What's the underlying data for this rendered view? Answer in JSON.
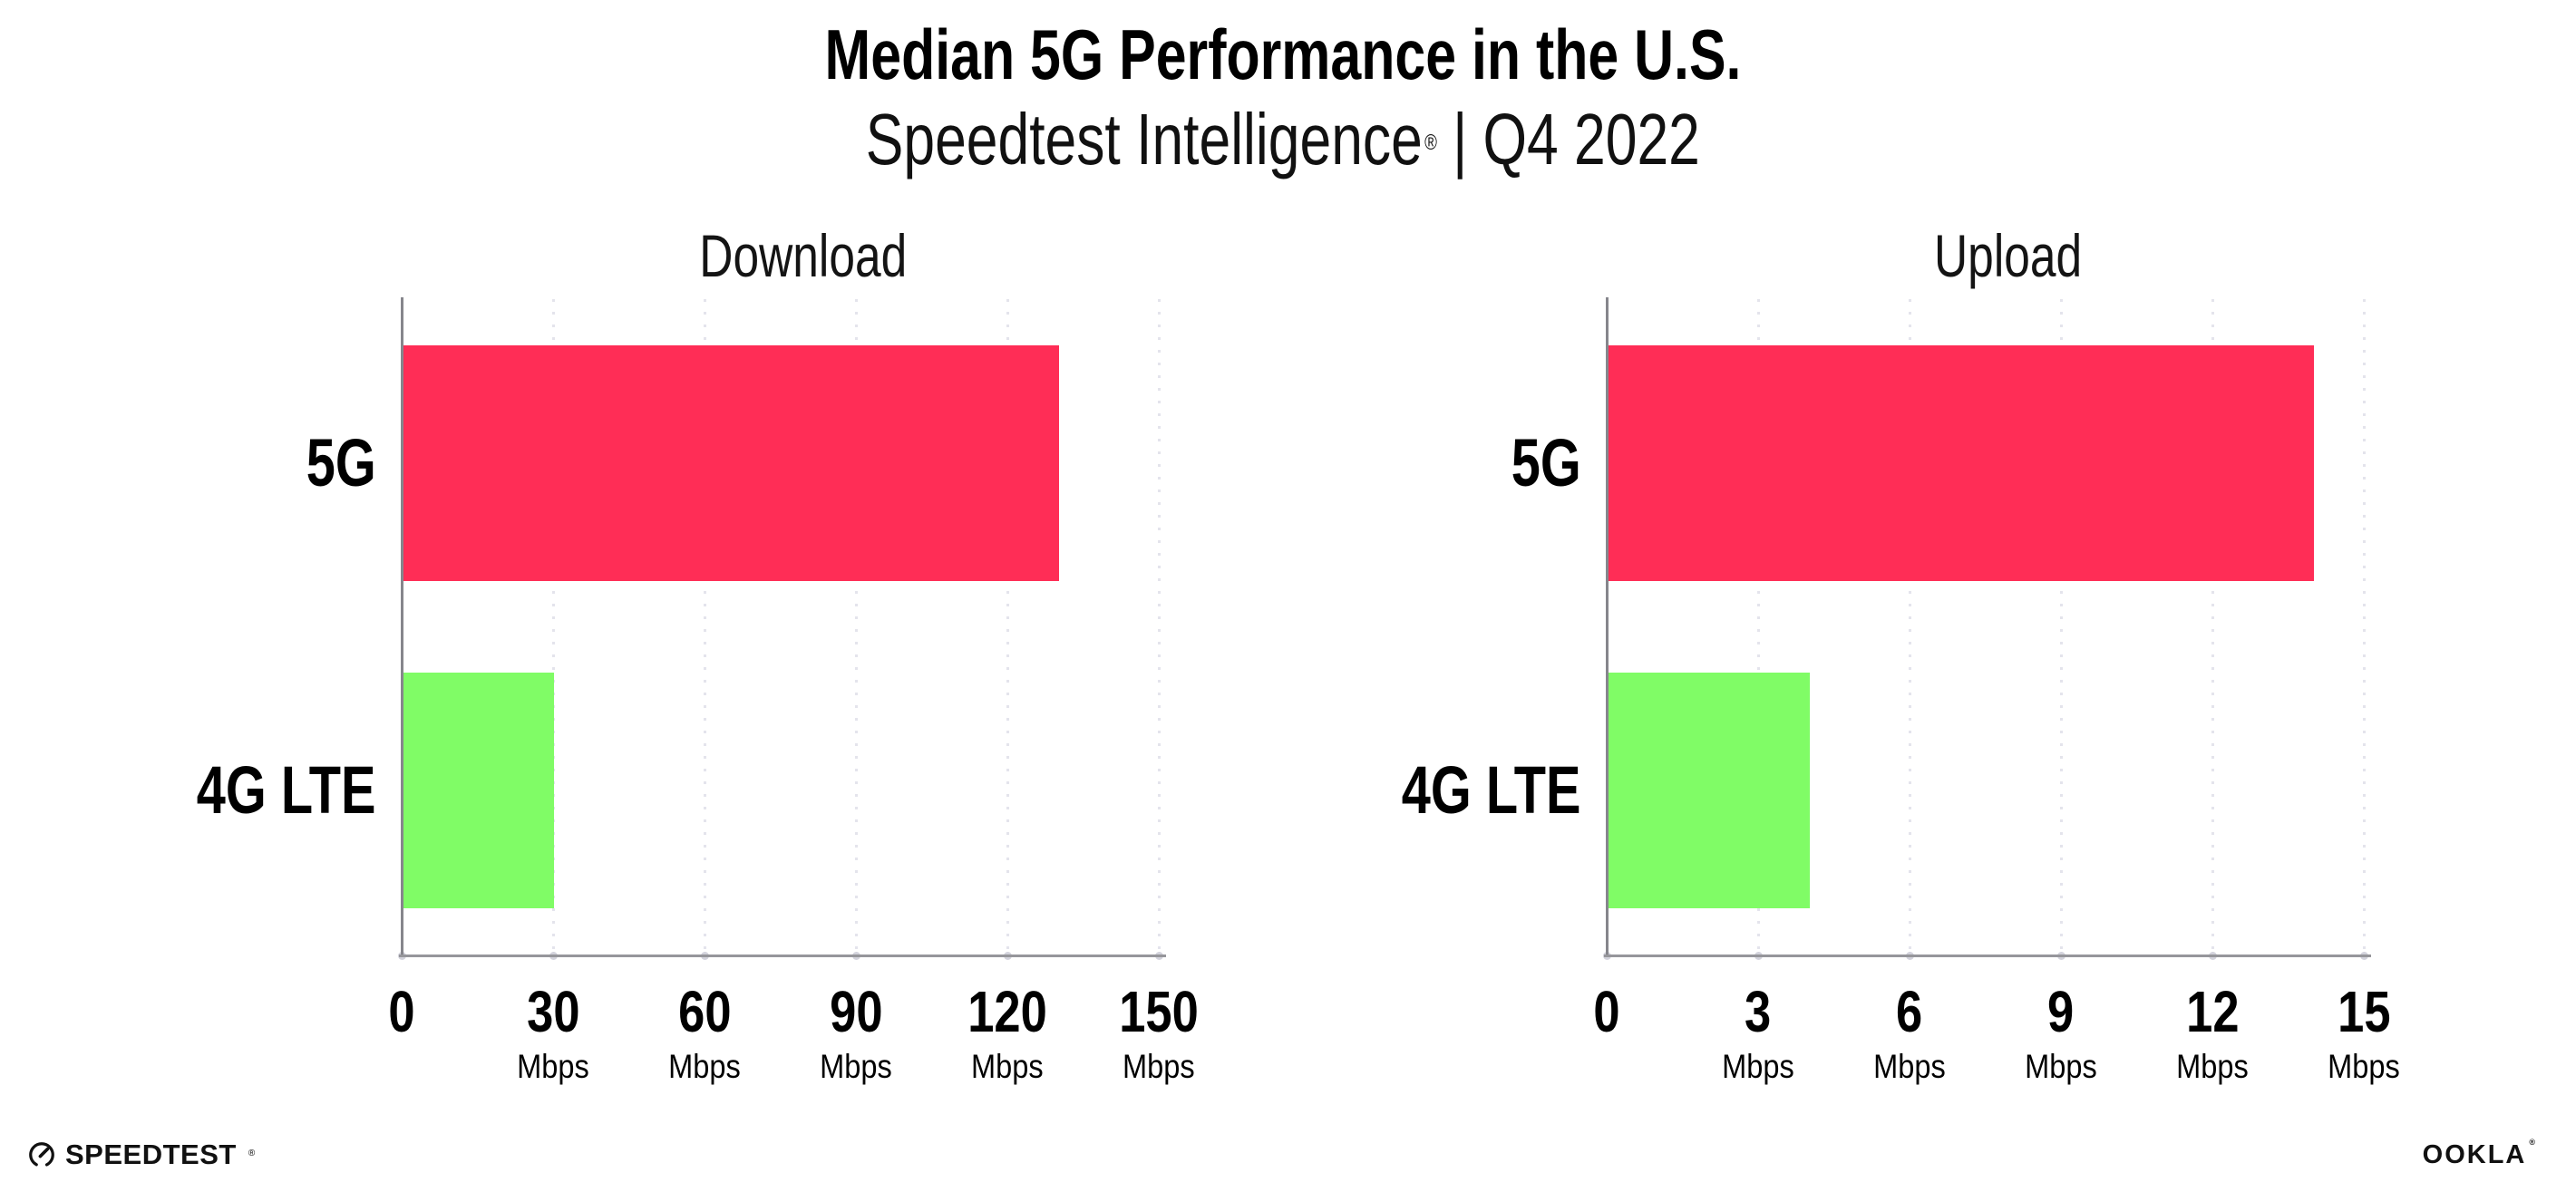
{
  "header": {
    "title": "Median 5G Performance in the U.S.",
    "subtitle_brand": "Speedtest Intelligence",
    "subtitle_mark": "®",
    "subtitle_separator": "|",
    "subtitle_period": "Q4 2022"
  },
  "chart_data": [
    {
      "type": "bar",
      "orientation": "horizontal",
      "title": "Download",
      "categories": [
        "5G",
        "4G LTE"
      ],
      "values": [
        130,
        30
      ],
      "unit": "Mbps",
      "xlabel": "",
      "ylabel": "",
      "xlim": [
        0,
        150
      ],
      "xticks": [
        0,
        30,
        60,
        90,
        120,
        150
      ],
      "bar_colors": [
        "#ff2d56",
        "#80fc66"
      ],
      "grid": "vertical-dotted",
      "legend": "none"
    },
    {
      "type": "bar",
      "orientation": "horizontal",
      "title": "Upload",
      "categories": [
        "5G",
        "4G LTE"
      ],
      "values": [
        14,
        4
      ],
      "unit": "Mbps",
      "xlabel": "",
      "ylabel": "",
      "xlim": [
        0,
        15
      ],
      "xticks": [
        0,
        3,
        6,
        9,
        12,
        15
      ],
      "bar_colors": [
        "#ff2d56",
        "#80fc66"
      ],
      "grid": "vertical-dotted",
      "legend": "none"
    }
  ],
  "footer": {
    "speedtest_label": "SPEEDTEST",
    "speedtest_mark": "®",
    "ookla_label": "OOKLA",
    "ookla_mark": "®"
  },
  "colors": {
    "bar_5g": "#ff2d56",
    "bar_4g_lte": "#80fc66",
    "gridline": "#e4e4ec",
    "x_axis": "#96969b",
    "y_axis": "#86868c",
    "text": "#000000",
    "background": "#ffffff"
  }
}
